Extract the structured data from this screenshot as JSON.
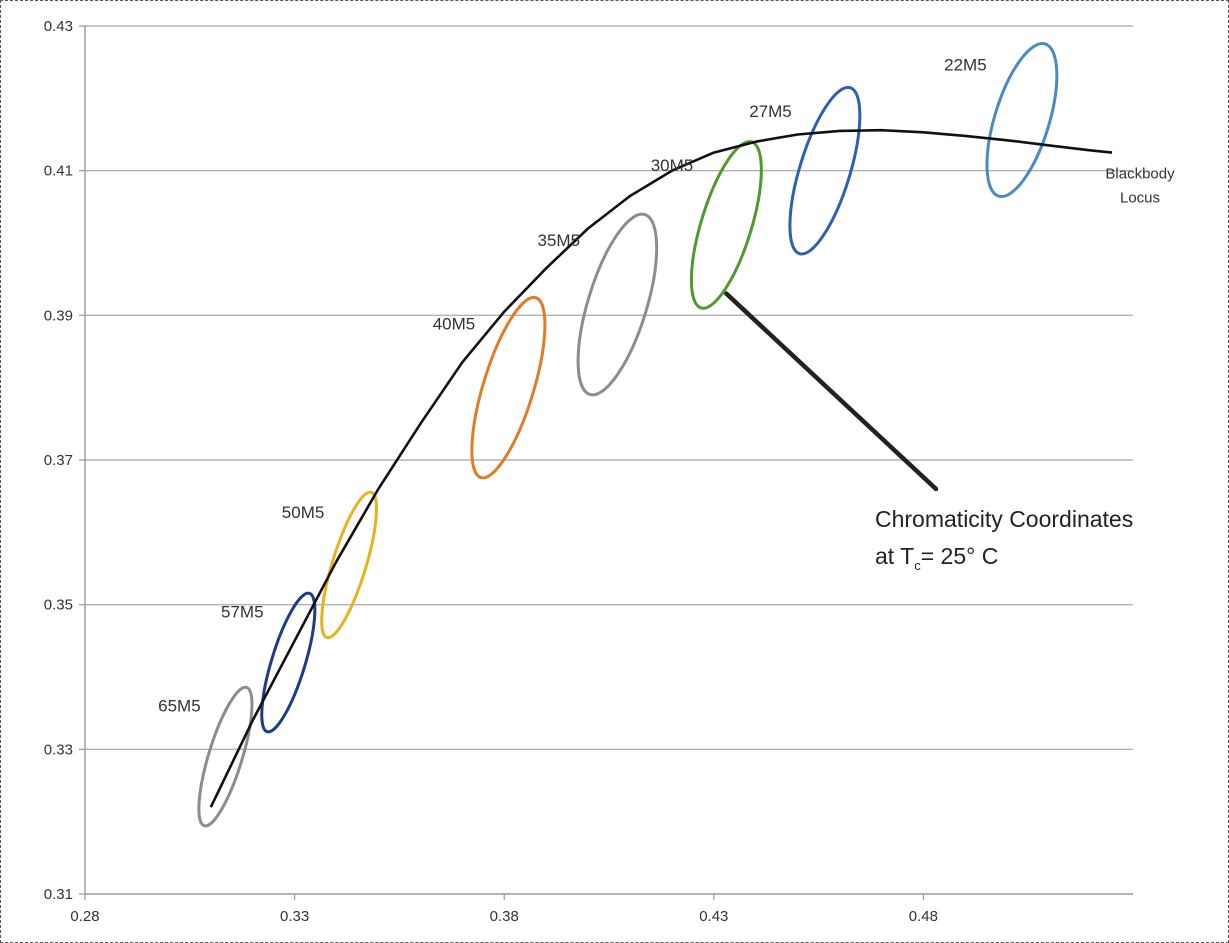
{
  "chart_data": {
    "type": "line",
    "title": "",
    "xlabel": "",
    "ylabel": "",
    "xlim": [
      0.28,
      0.53
    ],
    "ylim": [
      0.31,
      0.43
    ],
    "x_ticks": [
      "0.28",
      "0.33",
      "0.38",
      "0.43",
      "0.48"
    ],
    "y_ticks": [
      "0.43",
      "0.41",
      "0.39",
      "0.37",
      "0.35",
      "0.33",
      "0.31"
    ],
    "grid": "horizontal",
    "blackbody_locus": {
      "label_lines": [
        "Blackbody",
        "Locus"
      ],
      "points": [
        [
          0.31,
          0.322
        ],
        [
          0.32,
          0.334
        ],
        [
          0.33,
          0.345
        ],
        [
          0.34,
          0.356
        ],
        [
          0.35,
          0.366
        ],
        [
          0.36,
          0.375
        ],
        [
          0.37,
          0.3835
        ],
        [
          0.38,
          0.3905
        ],
        [
          0.39,
          0.3965
        ],
        [
          0.4,
          0.402
        ],
        [
          0.41,
          0.4065
        ],
        [
          0.42,
          0.41
        ],
        [
          0.43,
          0.4125
        ],
        [
          0.44,
          0.414
        ],
        [
          0.45,
          0.415
        ],
        [
          0.46,
          0.4155
        ],
        [
          0.47,
          0.4156
        ],
        [
          0.48,
          0.4153
        ],
        [
          0.49,
          0.4148
        ],
        [
          0.5,
          0.4142
        ],
        [
          0.51,
          0.4135
        ],
        [
          0.52,
          0.4128
        ],
        [
          0.525,
          0.4125
        ]
      ]
    },
    "ellipses": [
      {
        "label": "65M5",
        "cx": 0.3135,
        "cy": 0.329,
        "rx": 0.004,
        "ry": 0.01,
        "angle": 17,
        "color": "#8c8c8c"
      },
      {
        "label": "57M5",
        "cx": 0.3285,
        "cy": 0.342,
        "rx": 0.004,
        "ry": 0.01,
        "angle": 17,
        "color": "#1f3a8a"
      },
      {
        "label": "50M5",
        "cx": 0.343,
        "cy": 0.3555,
        "rx": 0.004,
        "ry": 0.0105,
        "angle": 17,
        "color": "#e8b21b"
      },
      {
        "label": "40M5",
        "cx": 0.381,
        "cy": 0.38,
        "rx": 0.006,
        "ry": 0.013,
        "angle": 17,
        "color": "#e07b26"
      },
      {
        "label": "35M5",
        "cx": 0.407,
        "cy": 0.3915,
        "rx": 0.007,
        "ry": 0.013,
        "angle": 17,
        "color": "#8c8c8c"
      },
      {
        "label": "30M5",
        "cx": 0.433,
        "cy": 0.4025,
        "rx": 0.006,
        "ry": 0.012,
        "angle": 17,
        "color": "#4e9a2e"
      },
      {
        "label": "27M5",
        "cx": 0.4565,
        "cy": 0.41,
        "rx": 0.006,
        "ry": 0.012,
        "angle": 17,
        "color": "#2f5fb0"
      },
      {
        "label": "22M5",
        "cx": 0.5035,
        "cy": 0.417,
        "rx": 0.0065,
        "ry": 0.011,
        "angle": 17,
        "color": "#4a8ac4"
      }
    ],
    "annotation": {
      "line1": "Chromaticity Coordinates",
      "line2_prefix": "at T",
      "line2_subscript": "c",
      "line2_suffix": "= 25° C",
      "from": [
        0.433,
        0.393
      ],
      "to": [
        0.483,
        0.366
      ]
    }
  }
}
